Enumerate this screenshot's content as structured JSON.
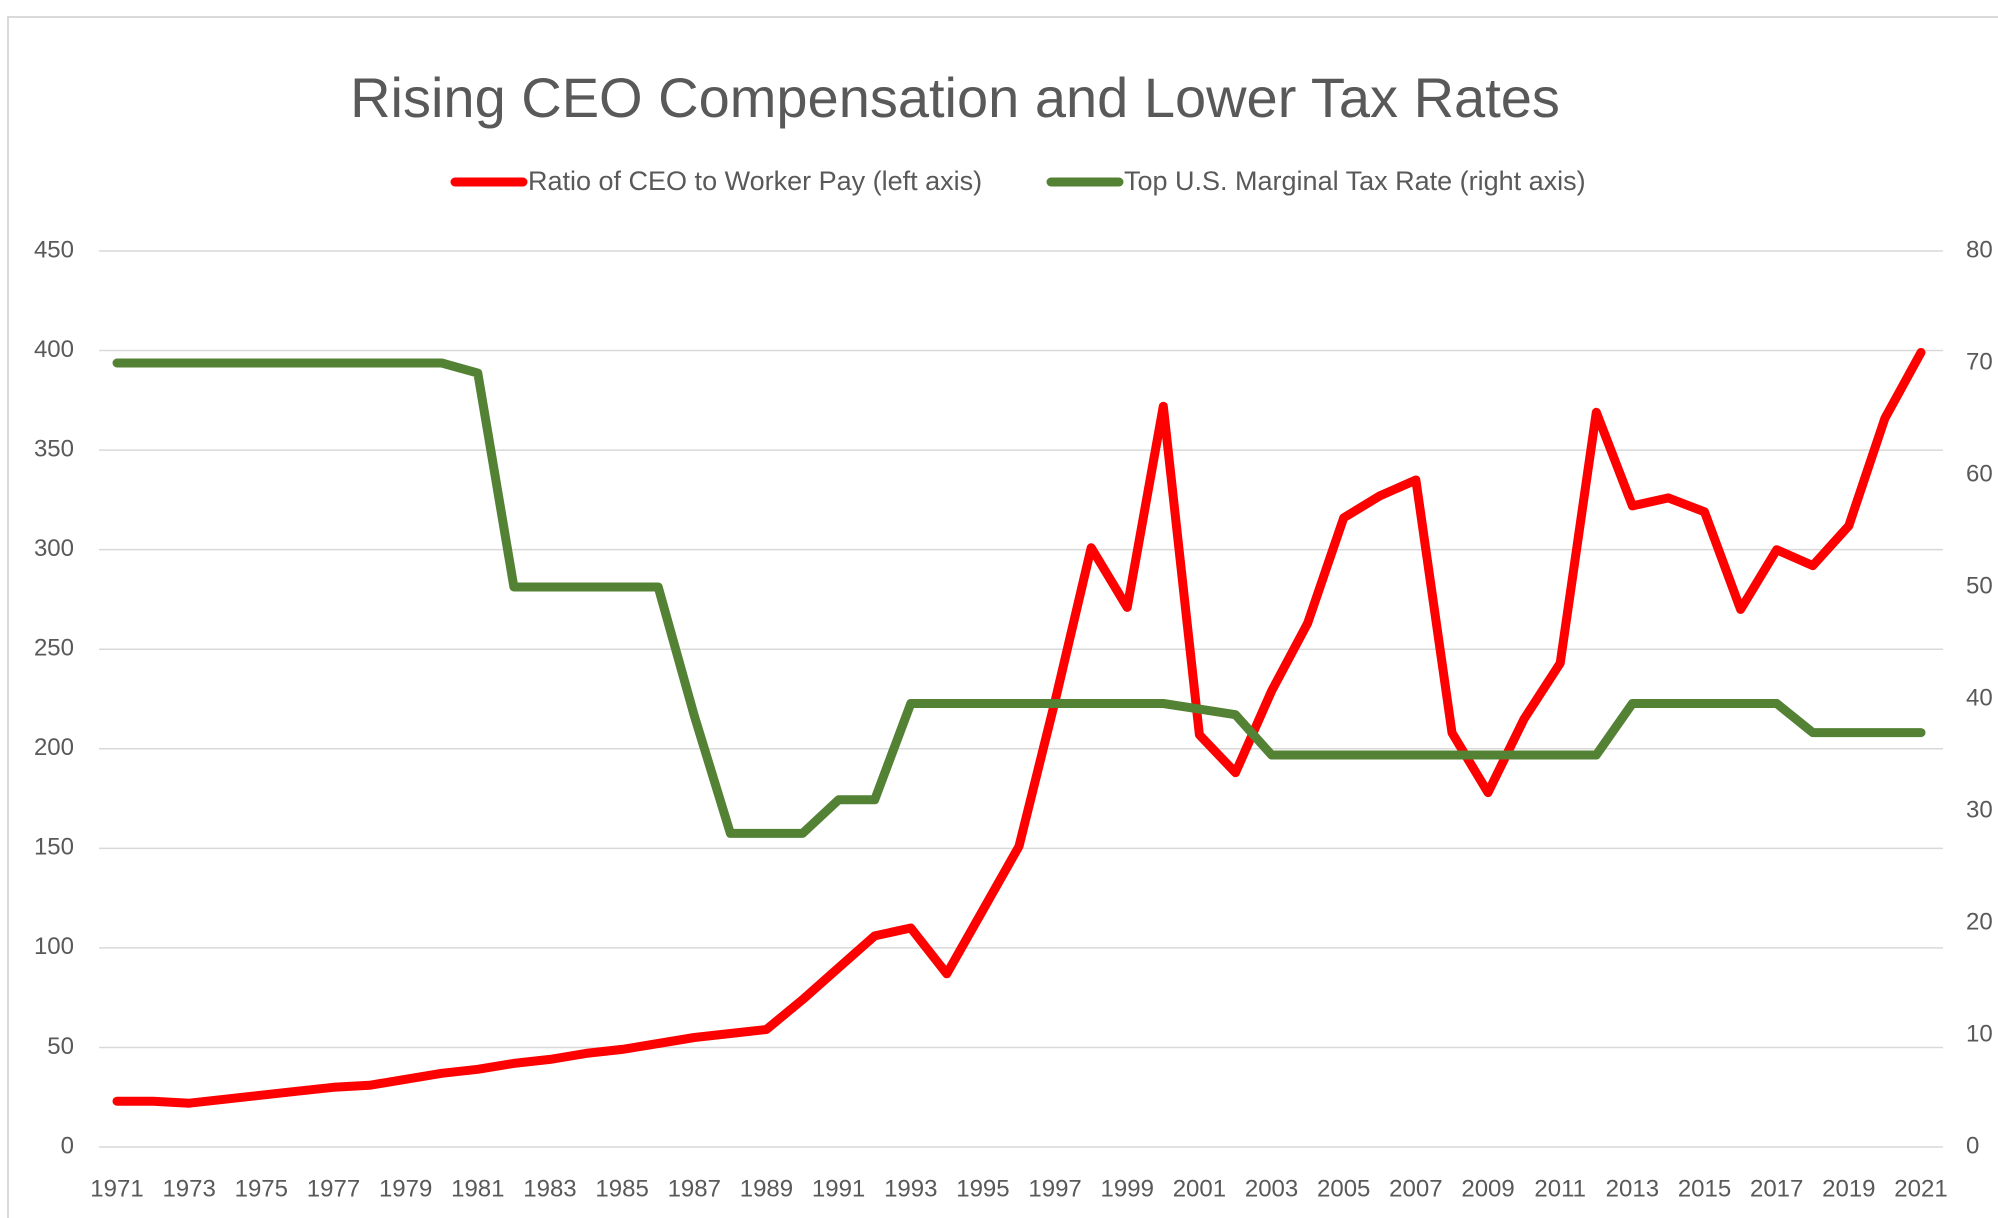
{
  "chart_data": {
    "type": "line",
    "title": "Rising CEO Compensation and Lower Tax Rates",
    "categories": [
      "1971",
      null,
      "1973",
      null,
      "1975",
      null,
      "1977",
      null,
      "1979",
      null,
      "1981",
      null,
      "1983",
      null,
      "1985",
      null,
      "1987",
      null,
      "1989",
      null,
      "1991",
      null,
      "1993",
      null,
      "1995",
      null,
      "1997",
      null,
      "1999",
      null,
      "2001",
      null,
      "2003",
      null,
      "2005",
      null,
      "2007",
      null,
      "2009",
      null,
      "2011",
      null,
      "2013",
      null,
      "2015",
      null,
      "2017",
      null,
      "2019",
      null,
      "2021"
    ],
    "series": [
      {
        "name": "Ratio of CEO to Worker Pay (left axis)",
        "color": "#ff0000",
        "values": [
          23,
          23,
          22,
          24,
          26,
          28,
          30,
          31,
          34,
          37,
          39,
          42,
          44,
          47,
          49,
          52,
          55,
          57,
          59,
          74,
          90,
          106,
          110,
          87,
          119,
          151,
          224,
          301,
          271,
          372,
          207,
          188,
          229,
          263,
          316,
          327,
          335,
          208,
          178,
          215,
          243,
          369,
          322,
          326,
          319,
          270,
          300,
          292,
          312,
          366,
          399
        ]
      },
      {
        "name": "Top U.S. Marginal Tax Rate (right axis)",
        "color": "#548235",
        "axis": "y2",
        "values": [
          70,
          70,
          70,
          70,
          70,
          70,
          70,
          70,
          70,
          70,
          69.1,
          50,
          50,
          50,
          50,
          50,
          38.5,
          28,
          28,
          28,
          31,
          31,
          39.6,
          39.6,
          39.6,
          39.6,
          39.6,
          39.6,
          39.6,
          39.6,
          39.1,
          38.6,
          35,
          35,
          35,
          35,
          35,
          35,
          35,
          35,
          35,
          35,
          39.6,
          39.6,
          39.6,
          39.6,
          39.6,
          37,
          37,
          37,
          37
        ]
      }
    ],
    "ylim": [
      0,
      450
    ],
    "yticks": [
      0,
      50,
      100,
      150,
      200,
      250,
      300,
      350,
      400,
      450
    ],
    "y2lim": [
      0,
      80
    ],
    "y2ticks": [
      0,
      10,
      20,
      30,
      40,
      50,
      60,
      70,
      80
    ],
    "grid": true,
    "legend": "top"
  }
}
